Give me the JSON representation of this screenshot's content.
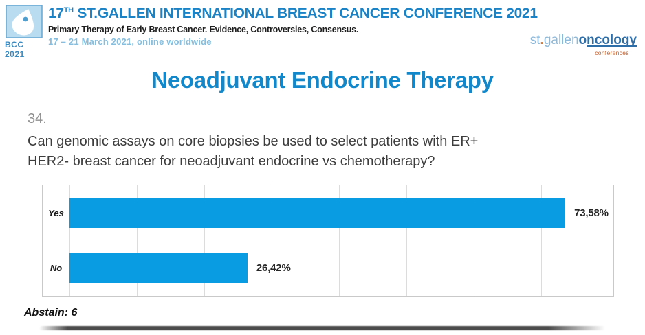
{
  "header": {
    "logo_abbr": "BCC 2021",
    "title_prefix": "17",
    "title_superscript": "TH",
    "title_rest": " ST.GALLEN INTERNATIONAL BREAST CANCER CONFERENCE 2021",
    "subtitle": "Primary Therapy of Early Breast Cancer. Evidence, Controversies, Consensus.",
    "dates": "17 – 21 March 2021, online worldwide",
    "right_logo": {
      "part_st": "st",
      "part_dot": ".",
      "part_gallen": "gallen",
      "part_oncology": "oncology",
      "part_conferences": "conferences"
    }
  },
  "slide": {
    "title": "Neoadjuvant Endocrine Therapy",
    "question_number": "34.",
    "question_line1": "Can genomic assays on core biopsies be used to select patients with ER+",
    "question_line2": "HER2- breast cancer for neoadjuvant endocrine vs chemotherapy?",
    "abstain": "Abstain: 6"
  },
  "chart_data": {
    "type": "bar",
    "orientation": "horizontal",
    "categories": [
      "Yes",
      "No"
    ],
    "values": [
      73.58,
      26.42
    ],
    "value_labels": [
      "73,58%",
      "26,42%"
    ],
    "xlim": [
      0,
      80
    ],
    "gridline_step": 10,
    "grid": true,
    "legend": false,
    "bar_color": "#0a9ce2",
    "title": "",
    "xlabel": "",
    "ylabel": ""
  },
  "colors": {
    "accent_blue": "#1287c9",
    "bar_blue": "#0a9ce2",
    "header_blue": "#1b83c5",
    "date_blue": "#85bede",
    "oncology_blue": "#2d6da8",
    "logo_orange": "#d9782f"
  }
}
